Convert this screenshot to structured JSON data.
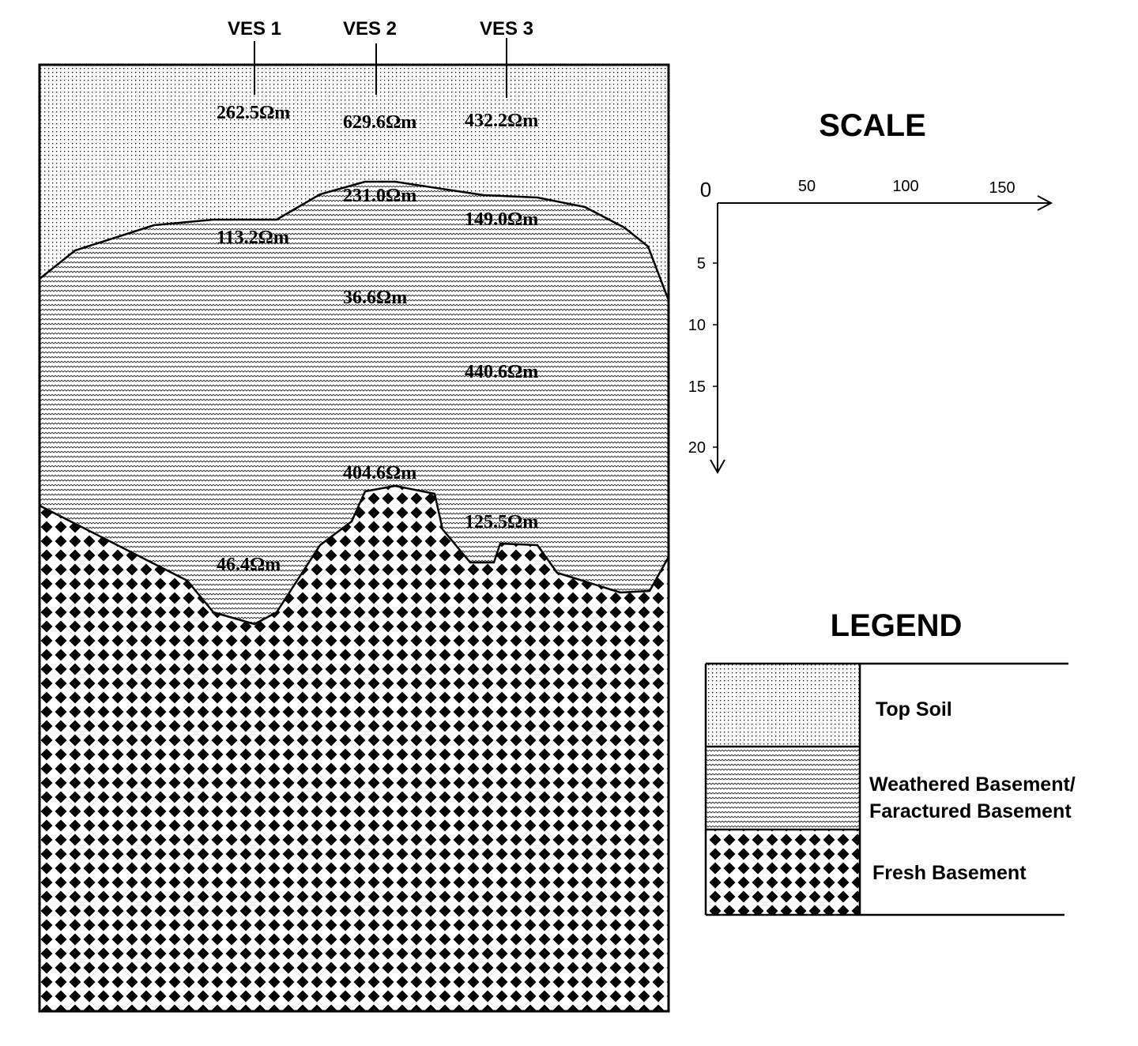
{
  "section": {
    "ves": [
      "VES 1",
      "VES 2",
      "VES 3"
    ],
    "resistivities": {
      "ves1": [
        "262.5Ωm",
        "113.2Ωm",
        "46.4Ωm"
      ],
      "ves2": [
        "629.6Ωm",
        "231.0Ωm",
        "36.6Ωm",
        "404.6Ωm"
      ],
      "ves3": [
        "432.2Ωm",
        "149.0Ωm",
        "440.6Ωm",
        "125.5Ωm"
      ]
    }
  },
  "scale": {
    "title": "SCALE",
    "horizontal_ticks": [
      "0",
      "50",
      "100",
      "150"
    ],
    "vertical_ticks": [
      "5",
      "10",
      "15",
      "20"
    ]
  },
  "legend": {
    "title": "LEGEND",
    "items": [
      {
        "label": "Top Soil"
      },
      {
        "label_line1": "Weathered Basement/",
        "label_line2": "Faractured Basement"
      },
      {
        "label": "Fresh Basement"
      }
    ]
  }
}
